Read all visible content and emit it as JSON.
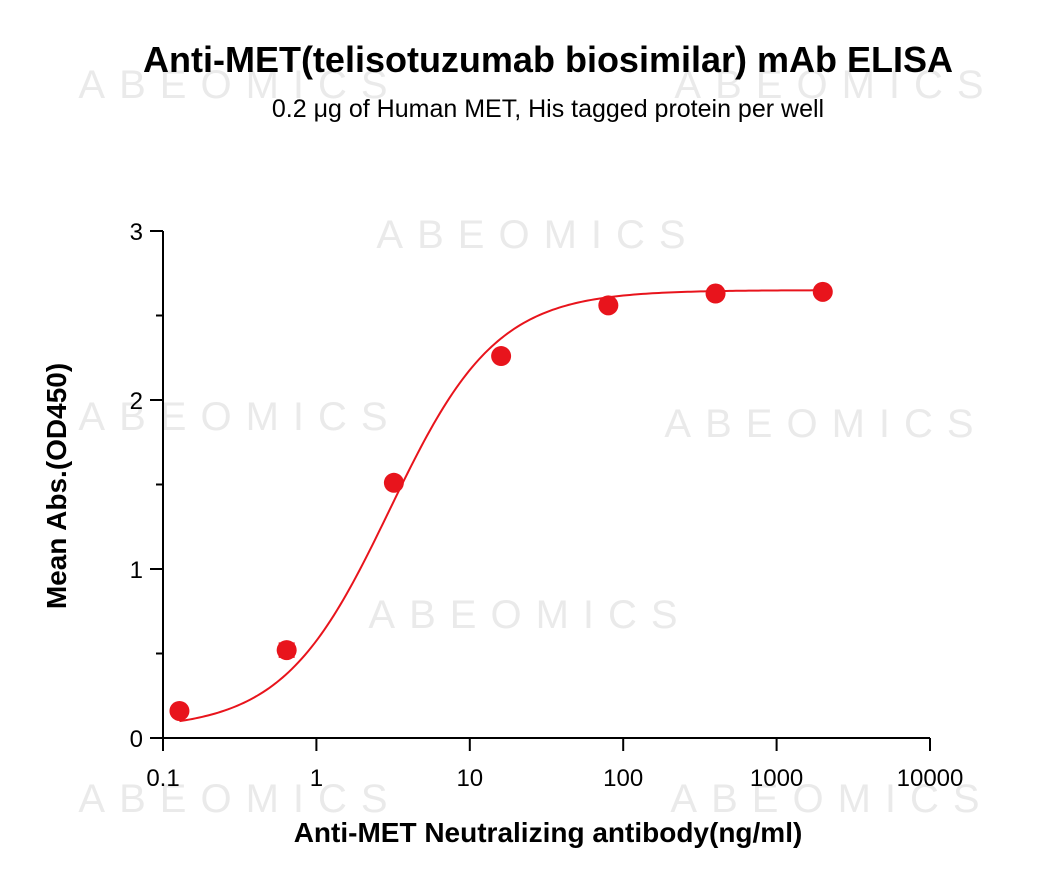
{
  "chart_data": {
    "type": "scatter",
    "title": "Anti-MET(telisotuzumab biosimilar) mAb ELISA",
    "subtitle": "0.2 μg of Human MET, His tagged protein per well",
    "xlabel": "Anti-MET Neutralizing antibody(ng/ml)",
    "ylabel": "Mean Abs.(OD450)",
    "x_scale": "log",
    "xlim": [
      0.1,
      10000
    ],
    "ylim": [
      0,
      3
    ],
    "x_ticks": [
      "0.1",
      "1",
      "10",
      "100",
      "1000",
      "10000"
    ],
    "y_ticks": [
      "0",
      "1",
      "2",
      "3"
    ],
    "grid": false,
    "series": [
      {
        "color": "#e8141c",
        "fit": "4-parameter logistic",
        "x": [
          0.128,
          0.64,
          3.2,
          16,
          80,
          400,
          2000
        ],
        "y": [
          0.16,
          0.52,
          1.51,
          2.26,
          2.56,
          2.63,
          2.64
        ],
        "y_err": [
          0.0,
          0.04,
          0.0,
          0.0,
          0.0,
          0.0,
          0.0
        ]
      }
    ],
    "watermark": "ABEOMICS"
  }
}
